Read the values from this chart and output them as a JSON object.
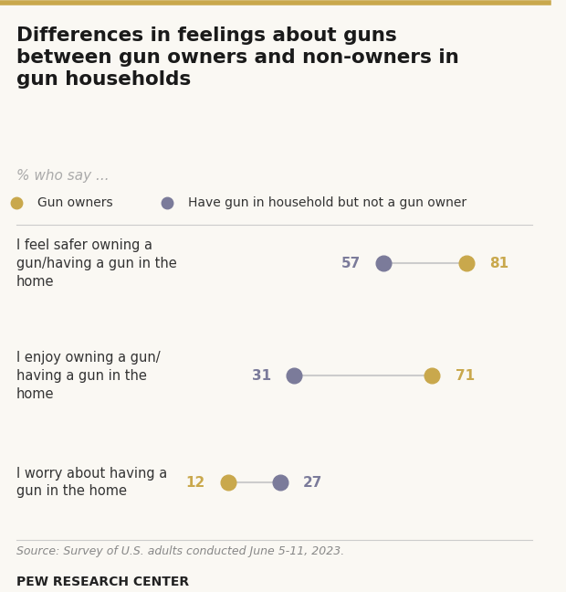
{
  "title": "Differences in feelings about guns\nbetween gun owners and non-owners in\ngun households",
  "subtitle": "% who say ...",
  "legend": [
    {
      "label": "Gun owners",
      "color": "#c9a84c"
    },
    {
      "label": "Have gun in household but not a gun owner",
      "color": "#7b7b9a"
    }
  ],
  "categories": [
    "I feel safer owning a\ngun/having a gun in the\nhome",
    "I enjoy owning a gun/\nhaving a gun in the\nhome",
    "I worry about having a\ngun in the home"
  ],
  "gun_owner_values": [
    81,
    71,
    12
  ],
  "non_owner_values": [
    57,
    31,
    27
  ],
  "gun_owner_color": "#c9a84c",
  "non_owner_color": "#7b7b9a",
  "source_text": "Source: Survey of U.S. adults conducted June 5-11, 2023.",
  "footer_text": "PEW RESEARCH CENTER",
  "background_color": "#faf8f3",
  "xmin": 0,
  "xmax": 100
}
